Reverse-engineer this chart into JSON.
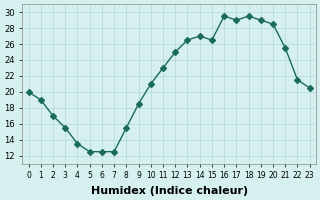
{
  "x": [
    0,
    1,
    2,
    3,
    4,
    5,
    6,
    7,
    8,
    9,
    10,
    11,
    12,
    13,
    14,
    15,
    16,
    17,
    18,
    19,
    20,
    21,
    22,
    23
  ],
  "y": [
    20,
    19,
    17,
    15.5,
    13.5,
    12.5,
    12.5,
    12.5,
    15.5,
    18.5,
    21,
    23,
    25,
    26.5,
    27,
    26.5,
    29.5,
    29,
    29.5,
    29,
    28.5,
    25.5,
    21.5,
    20.5
  ],
  "line_color": "#1a6b5a",
  "marker": "D",
  "marker_size": 3,
  "bg_color": "#d6f0f0",
  "grid_color": "#b0d8d8",
  "xlabel": "Humidex (Indice chaleur)",
  "ylabel": "",
  "xlim": [
    -0.5,
    23.5
  ],
  "ylim": [
    11,
    31
  ],
  "yticks": [
    12,
    14,
    16,
    18,
    20,
    22,
    24,
    26,
    28,
    30
  ],
  "xticks": [
    0,
    1,
    2,
    3,
    4,
    5,
    6,
    7,
    8,
    9,
    10,
    11,
    12,
    13,
    14,
    15,
    16,
    17,
    18,
    19,
    20,
    21,
    22,
    23
  ],
  "xtick_labels": [
    "0",
    "1",
    "2",
    "3",
    "4",
    "5",
    "6",
    "7",
    "8",
    "9",
    "10",
    "11",
    "12",
    "13",
    "14",
    "15",
    "16",
    "17",
    "18",
    "19",
    "20",
    "21",
    "22",
    "23"
  ],
  "label_fontsize": 8
}
